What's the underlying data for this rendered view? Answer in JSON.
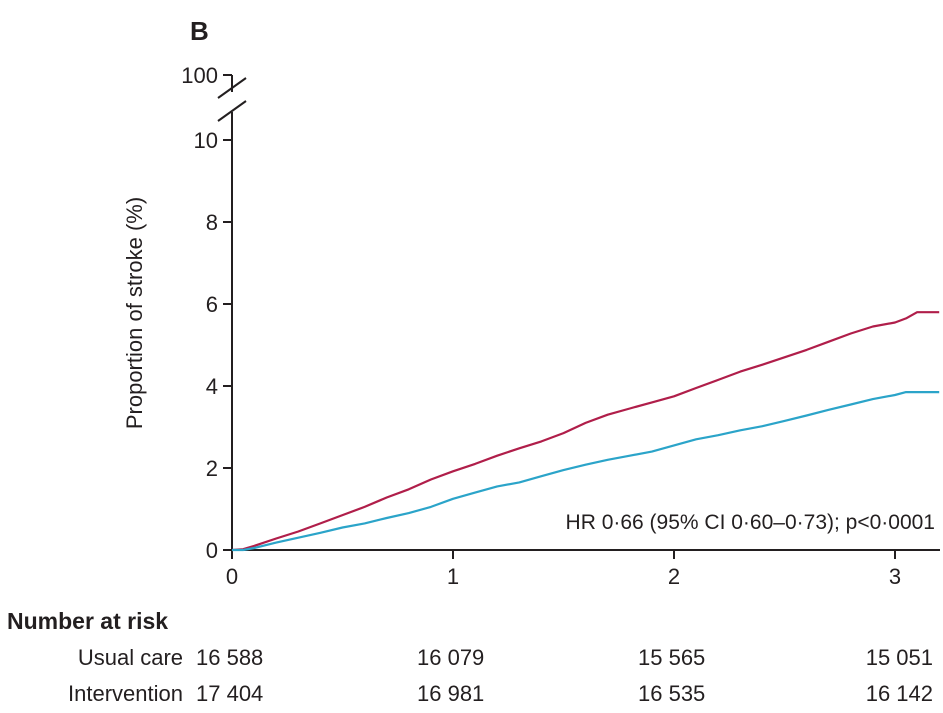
{
  "chart_data": {
    "type": "line",
    "panel_label": "B",
    "ylabel": "Proportion of stroke (%)",
    "xlim": [
      0,
      3.2
    ],
    "ylim": [
      0,
      10
    ],
    "y_break_label": "100",
    "y_ticks": [
      "0",
      "2",
      "4",
      "6",
      "8",
      "10"
    ],
    "x_ticks": [
      "0",
      "1",
      "2",
      "3"
    ],
    "annotation": "HR 0·66 (95% CI 0·60–0·73); p<0·0001",
    "series": [
      {
        "color": "#b01e4a",
        "x": [
          0,
          0.05,
          0.1,
          0.2,
          0.3,
          0.4,
          0.5,
          0.6,
          0.7,
          0.8,
          0.9,
          1.0,
          1.1,
          1.2,
          1.3,
          1.4,
          1.5,
          1.6,
          1.7,
          1.8,
          1.9,
          2.0,
          2.1,
          2.2,
          2.3,
          2.4,
          2.5,
          2.6,
          2.7,
          2.8,
          2.9,
          3.0,
          3.05,
          3.1,
          3.2
        ],
        "y": [
          0,
          0.02,
          0.1,
          0.28,
          0.45,
          0.65,
          0.85,
          1.05,
          1.28,
          1.48,
          1.72,
          1.92,
          2.1,
          2.3,
          2.48,
          2.65,
          2.85,
          3.1,
          3.3,
          3.45,
          3.6,
          3.75,
          3.95,
          4.15,
          4.35,
          4.52,
          4.7,
          4.88,
          5.08,
          5.28,
          5.45,
          5.55,
          5.65,
          5.8,
          5.8
        ]
      },
      {
        "color": "#2ba4c9",
        "x": [
          0,
          0.05,
          0.1,
          0.2,
          0.3,
          0.4,
          0.5,
          0.6,
          0.7,
          0.8,
          0.9,
          1.0,
          1.1,
          1.2,
          1.3,
          1.4,
          1.5,
          1.6,
          1.7,
          1.8,
          1.9,
          2.0,
          2.1,
          2.2,
          2.3,
          2.4,
          2.5,
          2.6,
          2.7,
          2.8,
          2.9,
          3.0,
          3.05,
          3.2
        ],
        "y": [
          0,
          0.0,
          0.05,
          0.18,
          0.3,
          0.42,
          0.55,
          0.65,
          0.78,
          0.9,
          1.05,
          1.25,
          1.4,
          1.55,
          1.65,
          1.8,
          1.95,
          2.08,
          2.2,
          2.3,
          2.4,
          2.55,
          2.7,
          2.8,
          2.92,
          3.02,
          3.15,
          3.28,
          3.42,
          3.55,
          3.68,
          3.78,
          3.85,
          3.85
        ]
      }
    ]
  },
  "risk_table": {
    "title": "Number at risk",
    "rows": [
      {
        "label": "Usual care",
        "values": [
          "16 588",
          "16 079",
          "15 565",
          "15 051"
        ]
      },
      {
        "label": "Intervention",
        "values": [
          "17 404",
          "16 981",
          "16 535",
          "16 142"
        ]
      }
    ]
  }
}
